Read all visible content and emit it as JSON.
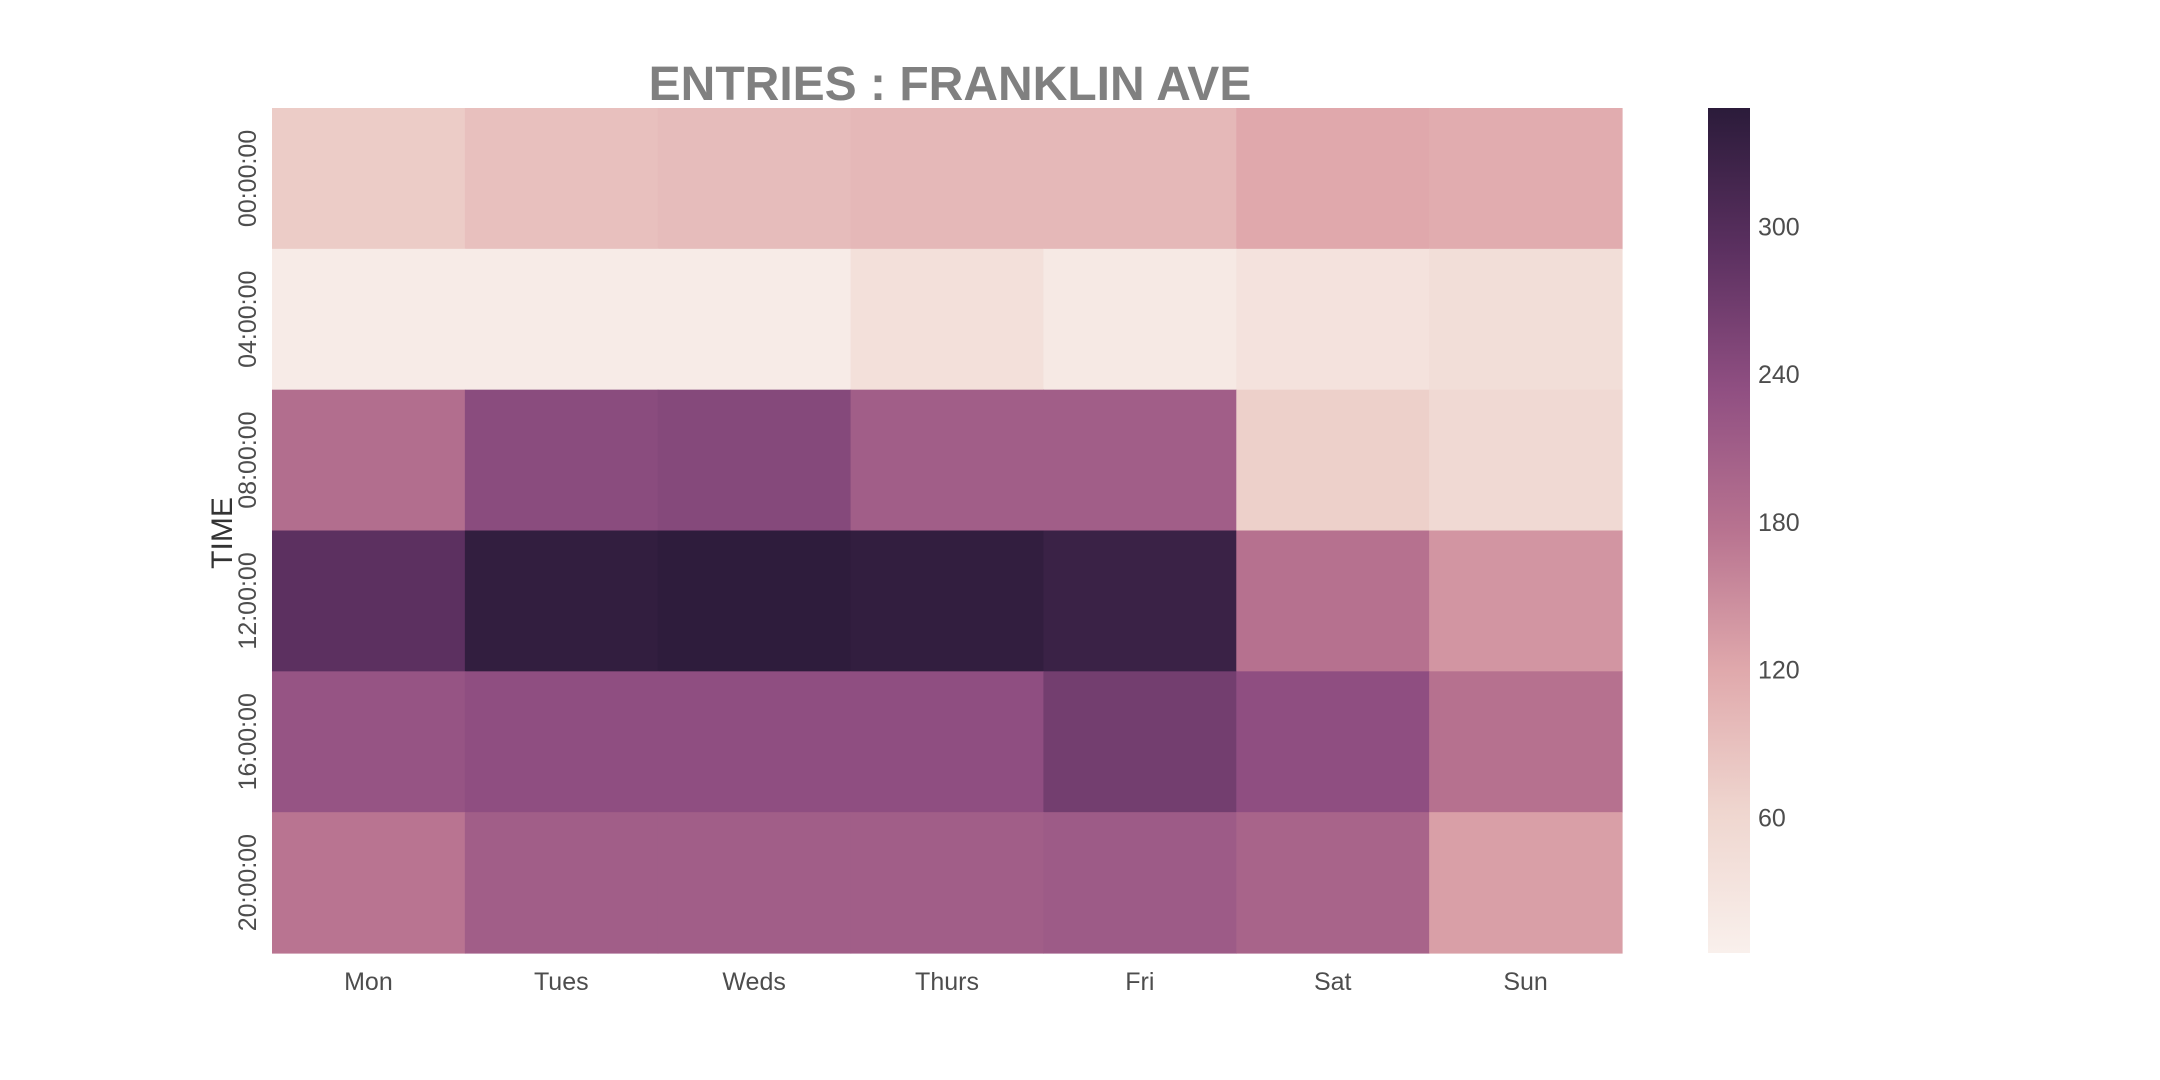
{
  "chart_data": {
    "type": "heatmap",
    "title": "ENTRIES : FRANKLIN AVE",
    "xlabel": "",
    "ylabel": "TIME",
    "x_categories": [
      "Mon",
      "Tues",
      "Weds",
      "Thurs",
      "Fri",
      "Sat",
      "Sun"
    ],
    "y_categories": [
      "00:00:00",
      "04:00:00",
      "08:00:00",
      "12:00:00",
      "16:00:00",
      "20:00:00"
    ],
    "values": [
      [
        75,
        90,
        95,
        100,
        100,
        120,
        115
      ],
      [
        15,
        15,
        15,
        40,
        20,
        35,
        45
      ],
      [
        185,
        240,
        245,
        210,
        210,
        70,
        55
      ],
      [
        290,
        340,
        345,
        340,
        330,
        180,
        140
      ],
      [
        225,
        235,
        235,
        235,
        265,
        235,
        180
      ],
      [
        175,
        210,
        210,
        210,
        215,
        200,
        130
      ]
    ],
    "colorbar": {
      "min": 5,
      "max": 348,
      "ticks": [
        60,
        120,
        180,
        240,
        300
      ]
    },
    "colormap": [
      "#f9f0ec",
      "#efd6cf",
      "#e0a9ac",
      "#b87390",
      "#904f82",
      "#5b3060",
      "#2b1b3a"
    ],
    "grid": false,
    "legend": "colorbar-right"
  }
}
